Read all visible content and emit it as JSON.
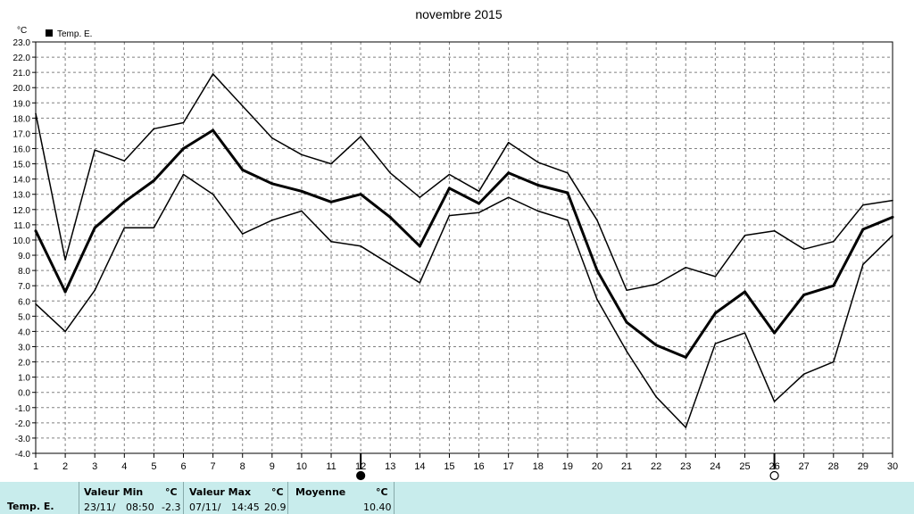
{
  "chart_data": {
    "type": "line",
    "title": "novembre 2015",
    "ylabel": "°C",
    "legend": "Temp. E.",
    "legend_position": "top-left",
    "grid": true,
    "ylim": [
      -4.0,
      23.0
    ],
    "ystep": 1.0,
    "x": [
      1,
      2,
      3,
      4,
      5,
      6,
      7,
      8,
      9,
      10,
      11,
      12,
      13,
      14,
      15,
      16,
      17,
      18,
      19,
      20,
      21,
      22,
      23,
      24,
      25,
      26,
      27,
      28,
      29,
      30
    ],
    "series": [
      {
        "name": "Temp. E.",
        "role": "max",
        "values": [
          18.3,
          8.7,
          15.9,
          15.2,
          17.3,
          17.7,
          20.9,
          18.8,
          16.7,
          15.6,
          15.0,
          16.8,
          14.4,
          12.8,
          14.3,
          13.2,
          16.4,
          15.1,
          14.4,
          11.3,
          6.7,
          7.1,
          8.2,
          7.6,
          10.3,
          10.6,
          9.4,
          9.9,
          12.3,
          12.6
        ]
      },
      {
        "name": "Temp. E.",
        "role": "mean",
        "values": [
          10.6,
          6.6,
          10.8,
          12.5,
          13.9,
          16.0,
          17.2,
          14.6,
          13.7,
          13.2,
          12.5,
          13.0,
          11.5,
          9.6,
          13.4,
          12.4,
          14.4,
          13.6,
          13.1,
          8.0,
          4.6,
          3.1,
          2.3,
          5.2,
          6.6,
          3.9,
          6.4,
          7.0,
          10.7,
          11.5
        ]
      },
      {
        "name": "Temp. E.",
        "role": "min",
        "values": [
          5.8,
          4.0,
          6.7,
          10.8,
          10.8,
          14.3,
          13.0,
          10.4,
          11.3,
          11.9,
          9.9,
          9.6,
          8.4,
          7.2,
          11.6,
          11.8,
          12.8,
          11.9,
          11.3,
          6.1,
          2.7,
          -0.3,
          -2.3,
          3.2,
          3.9,
          -0.6,
          1.2,
          2.0,
          8.4,
          10.3
        ]
      }
    ],
    "markers": [
      {
        "x": 12,
        "symbol": "full-moon"
      },
      {
        "x": 26,
        "symbol": "new-moon"
      }
    ]
  },
  "colors": {
    "line": "#000000",
    "grid": "#808080",
    "stats_bg": "#c8ecec"
  },
  "stats": {
    "label": "Temp. E.",
    "min": {
      "header": "Valeur Min",
      "unit": "°C",
      "date": "23/11/",
      "time": "08:50",
      "value": "-2.3"
    },
    "max": {
      "header": "Valeur Max",
      "unit": "°C",
      "date": "07/11/",
      "time": "14:45",
      "value": "20.9"
    },
    "mean": {
      "header": "Moyenne",
      "unit": "°C",
      "value": "10.40"
    }
  }
}
